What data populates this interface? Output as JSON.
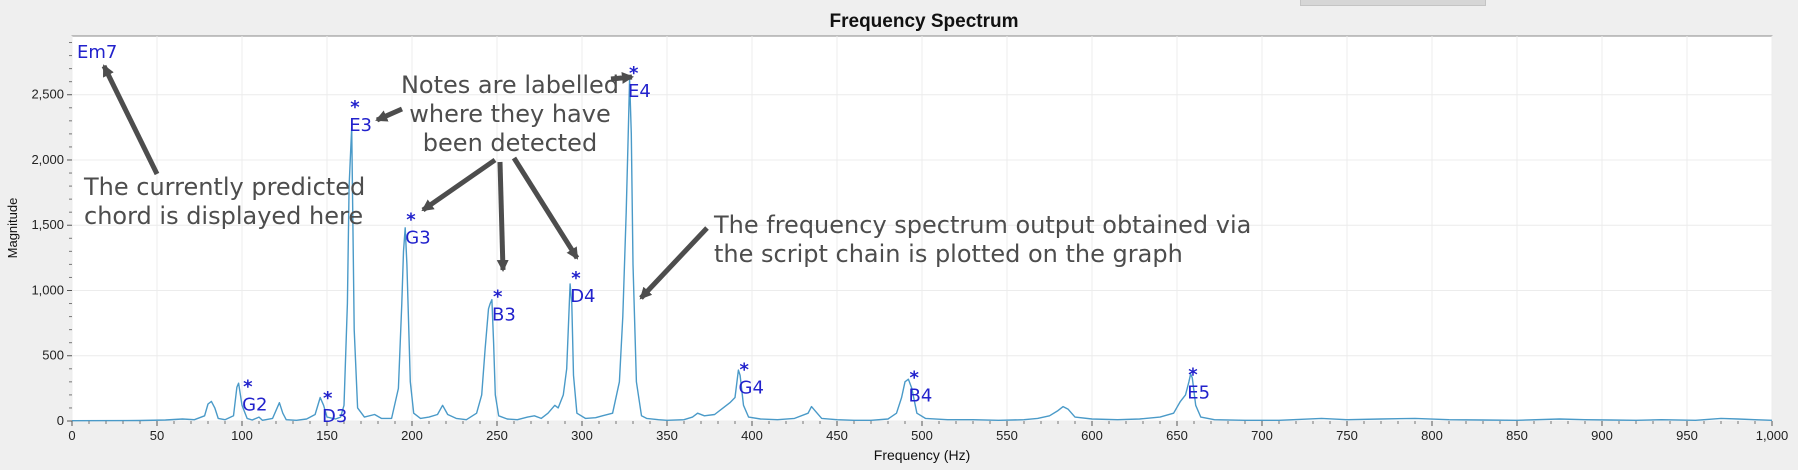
{
  "chart_data": {
    "type": "line",
    "title": "Frequency Spectrum",
    "xlabel": "Frequency (Hz)",
    "ylabel": "Magnitude",
    "xlim": [
      0,
      1000
    ],
    "ylim": [
      0,
      2950
    ],
    "x_ticks": [
      0,
      50,
      100,
      150,
      200,
      250,
      300,
      350,
      400,
      450,
      500,
      550,
      600,
      650,
      700,
      750,
      800,
      850,
      900,
      950,
      1000
    ],
    "x_tick_labels": [
      "0",
      "50",
      "100",
      "150",
      "200",
      "250",
      "300",
      "350",
      "400",
      "450",
      "500",
      "550",
      "600",
      "650",
      "700",
      "750",
      "800",
      "850",
      "900",
      "950",
      "1,000"
    ],
    "y_ticks": [
      0,
      500,
      1000,
      1500,
      2000,
      2500
    ],
    "y_tick_labels": [
      "0",
      "500",
      "1,000",
      "1,500",
      "2,000",
      "2,500"
    ],
    "grid": true,
    "line_color": "#4a9ac8",
    "label_color": "#2222cc",
    "chord_label": "Em7",
    "series": [
      {
        "points": [
          [
            0,
            2
          ],
          [
            40,
            4
          ],
          [
            55,
            8
          ],
          [
            65,
            15
          ],
          [
            72,
            10
          ],
          [
            78,
            40
          ],
          [
            80,
            130
          ],
          [
            82,
            150
          ],
          [
            84,
            100
          ],
          [
            86,
            20
          ],
          [
            90,
            10
          ],
          [
            95,
            40
          ],
          [
            97,
            260
          ],
          [
            98,
            290
          ],
          [
            100,
            120
          ],
          [
            103,
            20
          ],
          [
            106,
            8
          ],
          [
            110,
            30
          ],
          [
            112,
            5
          ],
          [
            118,
            20
          ],
          [
            122,
            140
          ],
          [
            124,
            60
          ],
          [
            126,
            10
          ],
          [
            132,
            5
          ],
          [
            138,
            15
          ],
          [
            143,
            50
          ],
          [
            146,
            180
          ],
          [
            148,
            120
          ],
          [
            150,
            30
          ],
          [
            155,
            15
          ],
          [
            158,
            30
          ],
          [
            160,
            120
          ],
          [
            162,
            900
          ],
          [
            163,
            1800
          ],
          [
            164.5,
            2250
          ],
          [
            166,
            700
          ],
          [
            168,
            100
          ],
          [
            172,
            30
          ],
          [
            178,
            50
          ],
          [
            182,
            20
          ],
          [
            188,
            20
          ],
          [
            192,
            250
          ],
          [
            194,
            900
          ],
          [
            195,
            1300
          ],
          [
            196,
            1480
          ],
          [
            197,
            1200
          ],
          [
            199,
            300
          ],
          [
            201,
            60
          ],
          [
            205,
            20
          ],
          [
            210,
            30
          ],
          [
            215,
            50
          ],
          [
            218,
            120
          ],
          [
            221,
            50
          ],
          [
            226,
            20
          ],
          [
            232,
            10
          ],
          [
            238,
            60
          ],
          [
            241,
            200
          ],
          [
            243,
            550
          ],
          [
            245,
            860
          ],
          [
            246,
            900
          ],
          [
            247,
            930
          ],
          [
            248,
            600
          ],
          [
            249,
            200
          ],
          [
            251,
            40
          ],
          [
            256,
            15
          ],
          [
            262,
            10
          ],
          [
            268,
            30
          ],
          [
            272,
            40
          ],
          [
            276,
            20
          ],
          [
            280,
            60
          ],
          [
            284,
            120
          ],
          [
            286,
            100
          ],
          [
            289,
            200
          ],
          [
            291,
            400
          ],
          [
            293,
            1050
          ],
          [
            294,
            900
          ],
          [
            295,
            350
          ],
          [
            297,
            60
          ],
          [
            302,
            20
          ],
          [
            308,
            25
          ],
          [
            312,
            40
          ],
          [
            318,
            60
          ],
          [
            322,
            300
          ],
          [
            324,
            800
          ],
          [
            326,
            1600
          ],
          [
            327,
            2100
          ],
          [
            328,
            2620
          ],
          [
            329,
            2200
          ],
          [
            330,
            1200
          ],
          [
            332,
            300
          ],
          [
            335,
            40
          ],
          [
            338,
            20
          ],
          [
            345,
            10
          ],
          [
            350,
            5
          ],
          [
            360,
            10
          ],
          [
            365,
            30
          ],
          [
            368,
            60
          ],
          [
            372,
            40
          ],
          [
            378,
            50
          ],
          [
            383,
            100
          ],
          [
            387,
            140
          ],
          [
            390,
            180
          ],
          [
            392,
            390
          ],
          [
            393,
            350
          ],
          [
            395,
            120
          ],
          [
            398,
            30
          ],
          [
            405,
            15
          ],
          [
            415,
            10
          ],
          [
            425,
            20
          ],
          [
            433,
            60
          ],
          [
            435,
            110
          ],
          [
            437,
            80
          ],
          [
            441,
            20
          ],
          [
            450,
            10
          ],
          [
            460,
            5
          ],
          [
            470,
            5
          ],
          [
            480,
            15
          ],
          [
            485,
            60
          ],
          [
            488,
            180
          ],
          [
            490,
            300
          ],
          [
            492,
            320
          ],
          [
            494,
            250
          ],
          [
            497,
            60
          ],
          [
            502,
            20
          ],
          [
            515,
            10
          ],
          [
            530,
            10
          ],
          [
            545,
            5
          ],
          [
            560,
            10
          ],
          [
            568,
            20
          ],
          [
            575,
            40
          ],
          [
            580,
            80
          ],
          [
            583,
            110
          ],
          [
            586,
            90
          ],
          [
            590,
            30
          ],
          [
            600,
            15
          ],
          [
            615,
            10
          ],
          [
            628,
            15
          ],
          [
            640,
            30
          ],
          [
            648,
            60
          ],
          [
            652,
            150
          ],
          [
            655,
            200
          ],
          [
            657,
            300
          ],
          [
            658,
            360
          ],
          [
            659,
            330
          ],
          [
            661,
            120
          ],
          [
            664,
            30
          ],
          [
            672,
            10
          ],
          [
            690,
            5
          ],
          [
            710,
            5
          ],
          [
            735,
            20
          ],
          [
            750,
            10
          ],
          [
            770,
            15
          ],
          [
            790,
            20
          ],
          [
            810,
            10
          ],
          [
            830,
            8
          ],
          [
            850,
            5
          ],
          [
            875,
            15
          ],
          [
            890,
            10
          ],
          [
            905,
            8
          ],
          [
            920,
            5
          ],
          [
            935,
            10
          ],
          [
            955,
            5
          ],
          [
            970,
            20
          ],
          [
            980,
            15
          ],
          [
            990,
            10
          ],
          [
            1000,
            5
          ]
        ]
      }
    ],
    "note_labels": [
      {
        "note": "G2",
        "freq": 103,
        "mag": 280
      },
      {
        "note": "D3",
        "freq": 150,
        "mag": 190
      },
      {
        "note": "E3",
        "freq": 166,
        "mag": 2420
      },
      {
        "note": "G3",
        "freq": 199,
        "mag": 1560
      },
      {
        "note": "B3",
        "freq": 250,
        "mag": 970
      },
      {
        "note": "D4",
        "freq": 296,
        "mag": 1110
      },
      {
        "note": "E4",
        "freq": 330,
        "mag": 2680
      },
      {
        "note": "G4",
        "freq": 395,
        "mag": 410
      },
      {
        "note": "B4",
        "freq": 495,
        "mag": 350
      },
      {
        "note": "E5",
        "freq": 659,
        "mag": 370
      }
    ],
    "detected_marker": "*",
    "annotations": [
      {
        "lines": [
          "Notes are labelled",
          "where they have",
          "been detected"
        ]
      },
      {
        "lines": [
          "The currently predicted",
          "chord is displayed here"
        ]
      },
      {
        "lines": [
          "The frequency spectrum output obtained via",
          "the script chain is plotted on the graph"
        ]
      }
    ]
  }
}
